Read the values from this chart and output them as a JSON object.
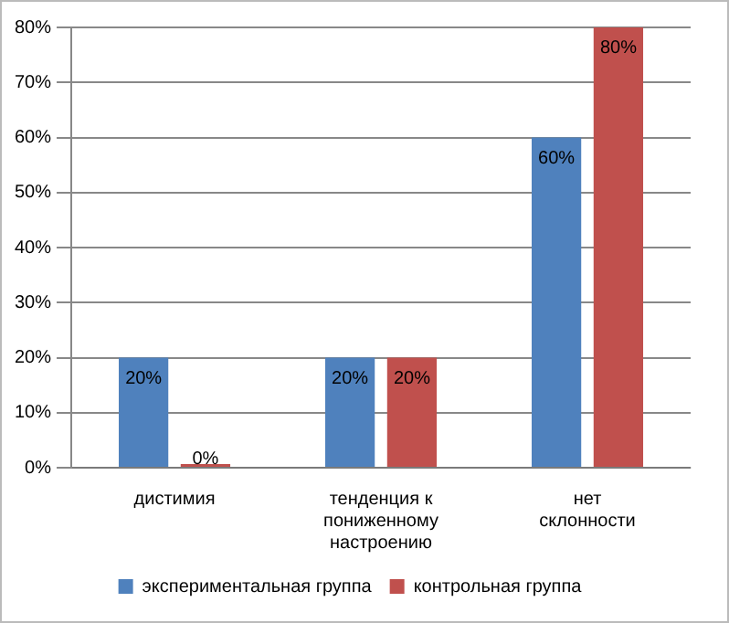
{
  "chart_data": {
    "type": "bar",
    "categories": [
      "дистимия",
      "тенденция к пониженному настроению",
      "нет склонности"
    ],
    "series": [
      {
        "name": "экспериментальная группа",
        "color": "#4f81bd",
        "values": [
          20,
          20,
          60
        ],
        "value_labels": [
          "20%",
          "20%",
          "60%"
        ]
      },
      {
        "name": "контрольная группа",
        "color": "#c0504d",
        "values": [
          0,
          20,
          80
        ],
        "value_labels": [
          "0%",
          "20%",
          "80%"
        ]
      }
    ],
    "ylim": [
      0,
      80
    ],
    "yticks": [
      {
        "value": 0,
        "label": "0%"
      },
      {
        "value": 10,
        "label": "10%"
      },
      {
        "value": 20,
        "label": "20%"
      },
      {
        "value": 30,
        "label": "30%"
      },
      {
        "value": 40,
        "label": "40%"
      },
      {
        "value": 50,
        "label": "50%"
      },
      {
        "value": 60,
        "label": "60%"
      },
      {
        "value": 70,
        "label": "70%"
      },
      {
        "value": 80,
        "label": "80%"
      }
    ],
    "grid": "y",
    "legend": "bottom"
  }
}
